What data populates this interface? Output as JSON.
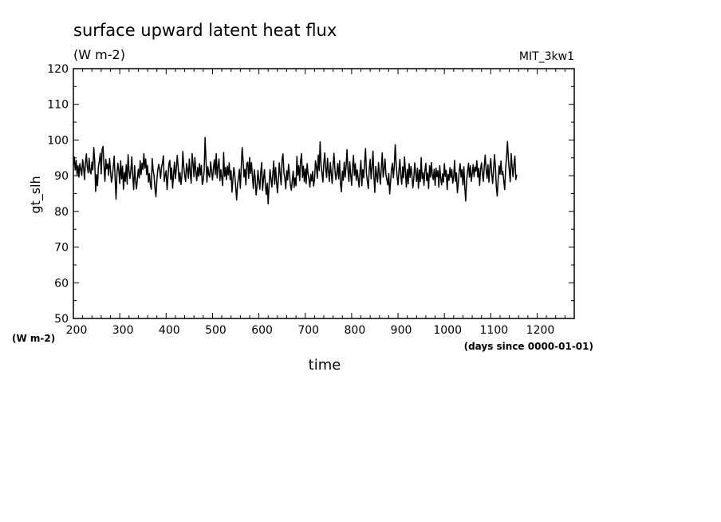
{
  "chart_data": {
    "type": "line",
    "title": "surface upward latent heat flux",
    "units": "(W m-2)",
    "model_label": "MIT_3kw1",
    "ylabel": "gt_slh",
    "yunits": "(W m-2)",
    "xlabel": "time",
    "xunits": "(days since 0000-01-01)",
    "xlim": [
      200,
      1280
    ],
    "ylim": [
      50,
      120
    ],
    "xticks": [
      200,
      300,
      400,
      500,
      600,
      700,
      800,
      900,
      1000,
      1100,
      1200
    ],
    "yticks": [
      50,
      60,
      70,
      80,
      90,
      100,
      110,
      120
    ],
    "x_step_days": 2,
    "line_color": "#000000",
    "series": [
      {
        "values": [
          93.0,
          95.2,
          91.6,
          94.3,
          90.2,
          92.8,
          89.6,
          93.4,
          91.8,
          90.1,
          94.5,
          92.3,
          88.9,
          93.7,
          96.1,
          92.4,
          90.8,
          94.9,
          91.2,
          90.5,
          93.8,
          91.6,
          97.9,
          94.2,
          85.6,
          90.3,
          87.2,
          92.6,
          94.1,
          96.3,
          90.5,
          97.4,
          98.2,
          92.7,
          88.4,
          94.6,
          91.9,
          93.3,
          90.1,
          94.8,
          91.5,
          88.2,
          89.6,
          92.4,
          95.5,
          89.3,
          83.4,
          90.6,
          93.5,
          91.3,
          87.8,
          94.2,
          89.1,
          92.7,
          86.2,
          90.9,
          88.4,
          93.1,
          87.6,
          95.9,
          91.4,
          89.2,
          91.6,
          95.3,
          89.9,
          86.1,
          92.8,
          88.7,
          86.3,
          88.9,
          91.8,
          89.4,
          94.2,
          90.3,
          93.5,
          91.7,
          96.2,
          92.1,
          94.7,
          90.3,
          92.9,
          88.2,
          90.6,
          87.4,
          86.2,
          94.8,
          91.5,
          89.9,
          86.4,
          84.1,
          88.7,
          91.6,
          93.2,
          91.8,
          89.3,
          92.4,
          93.5,
          95.6,
          88.4,
          90.2,
          91.4,
          86.1,
          89.7,
          93.4,
          94.3,
          88.9,
          92.2,
          86.5,
          90.3,
          93.8,
          89.2,
          91.9,
          95.7,
          92.4,
          88.3,
          90.9,
          87.5,
          89.9,
          96.8,
          92.6,
          90.1,
          88.4,
          93.4,
          91.8,
          89.3,
          94.7,
          90.8,
          87.9,
          96.2,
          93.5,
          89.7,
          95.1,
          91.4,
          88.6,
          92.3,
          89.8,
          93.4,
          90.2,
          92.9,
          87.5,
          88.7,
          91.4,
          100.7,
          94.3,
          88.2,
          92.5,
          90.3,
          89.6,
          93.9,
          91.2,
          88.8,
          92.1,
          94.5,
          90.3,
          96.2,
          89.4,
          92.8,
          94.7,
          88.6,
          91.7,
          89.4,
          87.2,
          96.5,
          89.8,
          92.3,
          88.9,
          92.7,
          90.2,
          93.6,
          88.9,
          91.4,
          85.4,
          88.9,
          92.3,
          90.1,
          86.9,
          83.2,
          87.6,
          89.4,
          91.8,
          86.5,
          92.4,
          97.9,
          94.2,
          89.6,
          91.8,
          87.4,
          93.5,
          93.8,
          89.3,
          95.1,
          90.6,
          93.7,
          89.9,
          86.4,
          91.7,
          89.5,
          84.6,
          87.1,
          91.5,
          88.6,
          86.2,
          90.8,
          93.7,
          85.9,
          89.2,
          91.7,
          87.3,
          84.7,
          87.9,
          82.1,
          87.4,
          91.7,
          89.2,
          86.8,
          90.5,
          94.1,
          87.6,
          92.3,
          88.4,
          85.2,
          88.9,
          93.6,
          90.2,
          87.4,
          94.6,
          96.1,
          90.8,
          89.3,
          86.3,
          91.4,
          88.8,
          93.2,
          90.6,
          87.4,
          85.9,
          88.6,
          91.3,
          86.7,
          89.4,
          87.2,
          95.4,
          90.1,
          92.8,
          88.6,
          94.3,
          96.2,
          89.5,
          92.7,
          88.3,
          91.9,
          87.8,
          93.4,
          90.6,
          89.1,
          86.8,
          90.4,
          88.5,
          91.2,
          87.1,
          88.9,
          94.2,
          92.6,
          89.3,
          95.8,
          91.4,
          99.5,
          93.2,
          90.7,
          88.2,
          93.6,
          96.4,
          92.1,
          89.5,
          94.9,
          91.2,
          88.4,
          93.7,
          90.6,
          87.8,
          92.9,
          96.3,
          91.5,
          88.9,
          90.7,
          93.4,
          89.1,
          94.2,
          87.6,
          85.5,
          91.3,
          88.7,
          93.8,
          89.6,
          92.5,
          97.3,
          91.8,
          88.4,
          93.9,
          90.2,
          87.3,
          92.6,
          95.7,
          90.1,
          93.4,
          88.7,
          91.6,
          89.3,
          86.8,
          90.9,
          94.3,
          87.2,
          91.7,
          89.4,
          93.8,
          97.6,
          90.5,
          88.3,
          86.4,
          91.9,
          94.6,
          89.1,
          92.4,
          96.9,
          89.8,
          85.3,
          92.6,
          90.1,
          88.2,
          93.7,
          90.4,
          87.6,
          92.3,
          96.4,
          89.6,
          91.9,
          94.7,
          90.2,
          88.8,
          87.4,
          90.6,
          84.9,
          88.3,
          91.8,
          93.5,
          89.4,
          92.8,
          98.7,
          93.4,
          89.8,
          87.4,
          91.3,
          94.6,
          90.2,
          87.6,
          92.5,
          89.4,
          95.3,
          91.2,
          86.8,
          91.8,
          87.7,
          93.4,
          89.5,
          92.6,
          90.3,
          86.6,
          89.2,
          93.6,
          90.9,
          88.4,
          92.1,
          86.5,
          91.6,
          88.3,
          95.1,
          89.2,
          90.8,
          87.3,
          91.4,
          93.5,
          88.6,
          90.7,
          86.4,
          92.8,
          89.6,
          93.7,
          90.2,
          88.9,
          91.8,
          87.3,
          92.1,
          89.7,
          91.4,
          86.8,
          92.8,
          89.3,
          87.4,
          90.5,
          88.2,
          93.4,
          89.8,
          91.5,
          86.1,
          90.4,
          88.7,
          92.3,
          89.5,
          91.8,
          87.9,
          89.6,
          94.3,
          88.4,
          90.8,
          85.2,
          87.9,
          91.3,
          93.4,
          89.6,
          91.7,
          87.4,
          92.5,
          86.8,
          82.9,
          88.7,
          91.2,
          93.5,
          89.6,
          92.8,
          88.4,
          90.6,
          93.1,
          89.7,
          92.4,
          91.3,
          94.2,
          89.6,
          92.1,
          87.3,
          91.8,
          93.6,
          90.5,
          88.4,
          92.7,
          95.8,
          91.6,
          89.3,
          93.1,
          88.2,
          92.4,
          94.8,
          90.6,
          87.8,
          91.5,
          95.9,
          92.7,
          86.9,
          84.3,
          89.2,
          92.8,
          90.4,
          94.1,
          90.3,
          91.2,
          88.6,
          86.1,
          91.8,
          95.2,
          99.6,
          94.8,
          91.4,
          88.3,
          96.2,
          92.5,
          89.7,
          93.2,
          95.5,
          88.9,
          90.3
        ]
      }
    ]
  }
}
